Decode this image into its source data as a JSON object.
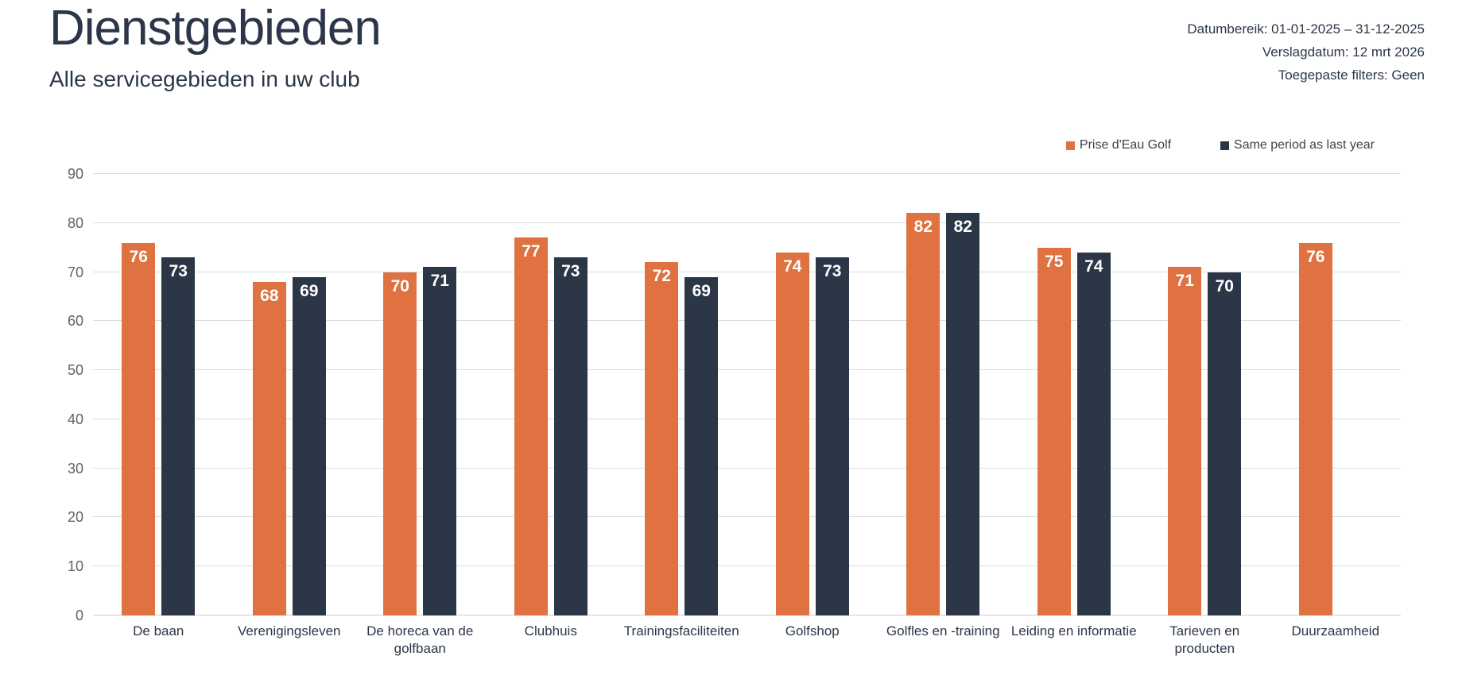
{
  "header": {
    "title": "Dienstgebieden",
    "subtitle": "Alle servicegebieden in uw club",
    "meta_lines": [
      "Datumbereik: 01-01-2025 – 31-12-2025",
      "Verslagdatum: 12 mrt 2026",
      "Toegepaste filters: Geen"
    ]
  },
  "legend": {
    "items": [
      {
        "label": "Prise d'Eau Golf",
        "color": "#df7240"
      },
      {
        "label": "Same period as last year",
        "color": "#2b3646"
      }
    ]
  },
  "chart_data": {
    "type": "bar",
    "title": "Dienstgebieden",
    "subtitle": "Alle servicegebieden in uw club",
    "categories": [
      "De baan",
      "Verenigingsleven",
      "De horeca van de golfbaan",
      "Clubhuis",
      "Trainingsfaciliteiten",
      "Golfshop",
      "Golfles en -training",
      "Leiding en informatie",
      "Tarieven en producten",
      "Duurzaamheid"
    ],
    "series": [
      {
        "name": "Prise d'Eau Golf",
        "color": "#df7240",
        "values": [
          76,
          68,
          70,
          77,
          72,
          74,
          82,
          75,
          71,
          76
        ]
      },
      {
        "name": "Same period as last year",
        "color": "#2b3646",
        "values": [
          73,
          69,
          71,
          73,
          69,
          73,
          82,
          74,
          70,
          null
        ]
      }
    ],
    "ylim": [
      0,
      90
    ],
    "yticks": [
      0,
      10,
      20,
      30,
      40,
      50,
      60,
      70,
      80,
      90
    ],
    "grid": true,
    "legend_position": "top-right",
    "value_label_position": "inside-top",
    "xlabel": "",
    "ylabel": ""
  },
  "colors": {
    "title_text": "#2b3648",
    "meta_text": "#2b3648",
    "axis_tick_text": "#5f6368",
    "category_text": "#2b3648",
    "legend_text": "#3c424c",
    "gridline": "#dcdcdc",
    "axis_line": "#d0d0d0",
    "value_label_text": "#ffffff",
    "background": "#ffffff"
  }
}
